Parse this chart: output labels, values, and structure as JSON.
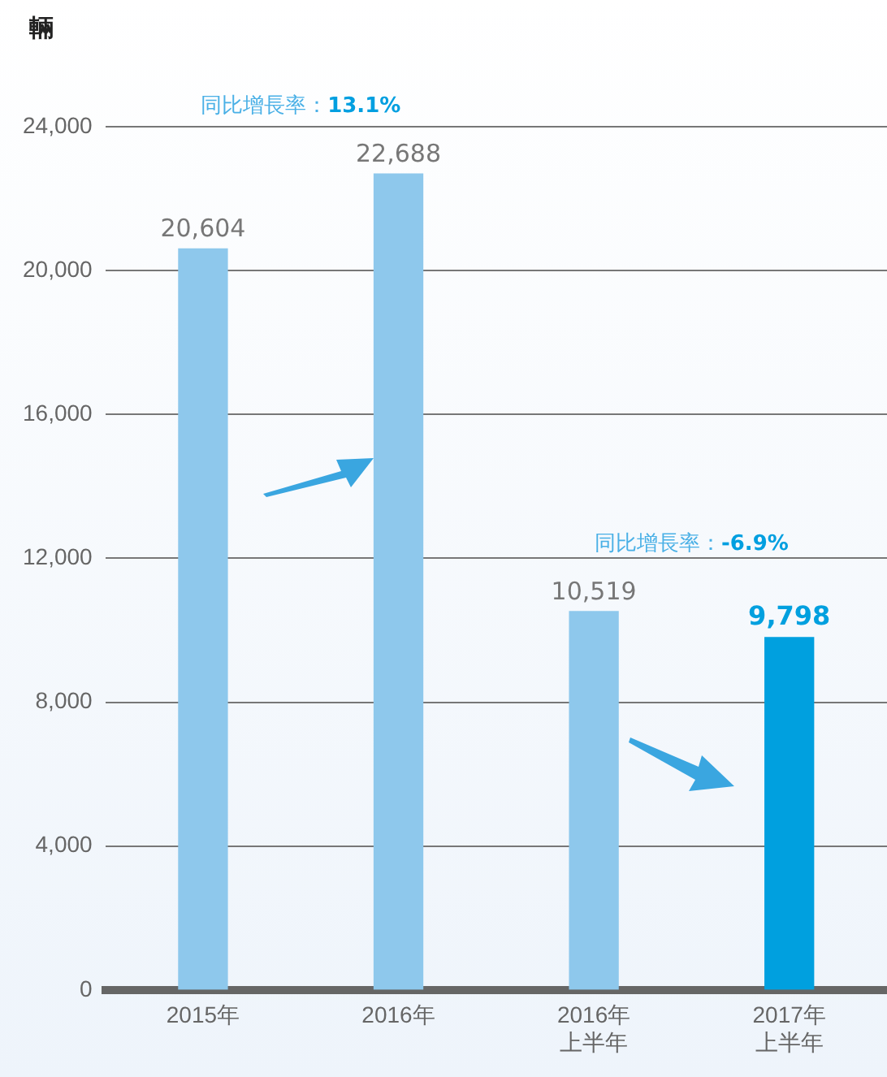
{
  "chart_data": {
    "type": "bar",
    "ylabel": "輛",
    "categories": [
      "2015年",
      "2016年",
      "2016年上半年",
      "2017年上半年"
    ],
    "values": [
      20604,
      22688,
      10519,
      9798
    ],
    "colors": [
      "#8ec8ec",
      "#8ec8ec",
      "#8ec8ec",
      "#00a0df"
    ],
    "value_labels": [
      "20,604",
      "22,688",
      "10,519",
      "9,798"
    ],
    "ylim": [
      0,
      24000
    ],
    "yticks": [
      0,
      {
        "value": 4000,
        "label": "4,000"
      },
      {
        "value": 8000,
        "label": "8,000"
      },
      {
        "value": 12000,
        "label": "12,000"
      },
      {
        "value": 16000,
        "label": "16,000"
      },
      {
        "value": 20000,
        "label": "20,000"
      },
      {
        "value": 24000,
        "label": "24,000"
      }
    ],
    "grid": "y",
    "legend": false,
    "annotations": [
      "同比增長率：13.1%",
      "同比增長率：-6.9%"
    ]
  }
}
